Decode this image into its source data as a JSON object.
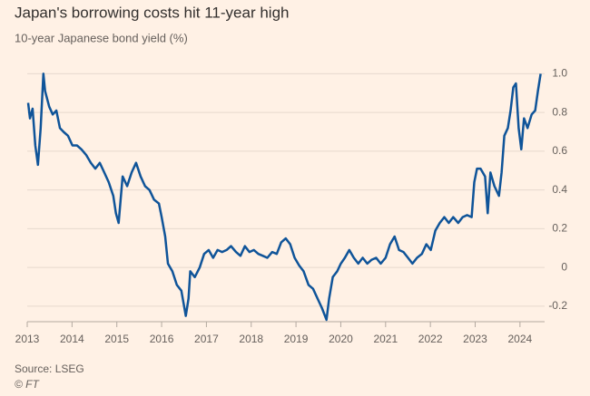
{
  "chart_data": {
    "type": "line",
    "title": "Japan's borrowing costs hit 11-year high",
    "subtitle": "10-year Japanese bond yield (%)",
    "source": "Source: LSEG",
    "credit": "© FT",
    "xlim": [
      2013,
      2024.55
    ],
    "xticks": [
      2013,
      2014,
      2015,
      2016,
      2017,
      2018,
      2019,
      2020,
      2021,
      2022,
      2023,
      2024
    ],
    "ylim": [
      -0.28,
      1.03
    ],
    "yticks": [
      {
        "value": 1,
        "label": "1.0"
      },
      0.8,
      0.6,
      0.4,
      0.2,
      0,
      -0.2
    ],
    "grid": true,
    "series": [
      {
        "name": "10-year Japanese bond yield",
        "color": "#0f5499",
        "x": [
          2013.02,
          2013.06,
          2013.12,
          2013.18,
          2013.24,
          2013.3,
          2013.36,
          2013.4,
          2013.49,
          2013.57,
          2013.65,
          2013.73,
          2013.81,
          2013.91,
          2014.01,
          2014.11,
          2014.21,
          2014.32,
          2014.42,
          2014.52,
          2014.62,
          2014.72,
          2014.82,
          2014.92,
          2014.98,
          2015.04,
          2015.13,
          2015.23,
          2015.33,
          2015.43,
          2015.53,
          2015.63,
          2015.73,
          2015.83,
          2015.94,
          2016.0,
          2016.08,
          2016.14,
          2016.24,
          2016.34,
          2016.44,
          2016.54,
          2016.6,
          2016.64,
          2016.74,
          2016.85,
          2016.95,
          2017.05,
          2017.15,
          2017.25,
          2017.35,
          2017.45,
          2017.55,
          2017.66,
          2017.76,
          2017.86,
          2017.96,
          2018.06,
          2018.16,
          2018.26,
          2018.36,
          2018.47,
          2018.57,
          2018.67,
          2018.77,
          2018.87,
          2018.97,
          2019.07,
          2019.17,
          2019.28,
          2019.38,
          2019.48,
          2019.58,
          2019.68,
          2019.74,
          2019.82,
          2019.92,
          2020.0,
          2020.09,
          2020.19,
          2020.29,
          2020.39,
          2020.49,
          2020.59,
          2020.69,
          2020.79,
          2020.89,
          2021.0,
          2021.1,
          2021.2,
          2021.3,
          2021.4,
          2021.5,
          2021.6,
          2021.7,
          2021.81,
          2021.91,
          2022.01,
          2022.11,
          2022.21,
          2022.31,
          2022.41,
          2022.51,
          2022.62,
          2022.72,
          2022.82,
          2022.92,
          2022.98,
          2023.04,
          2023.12,
          2023.22,
          2023.28,
          2023.34,
          2023.43,
          2023.53,
          2023.59,
          2023.65,
          2023.73,
          2023.79,
          2023.85,
          2023.91,
          2023.97,
          2024.03,
          2024.09,
          2024.17,
          2024.26,
          2024.34,
          2024.4,
          2024.46
        ],
        "values": [
          0.85,
          0.77,
          0.82,
          0.63,
          0.53,
          0.72,
          1.0,
          0.91,
          0.83,
          0.79,
          0.81,
          0.72,
          0.7,
          0.68,
          0.63,
          0.63,
          0.61,
          0.58,
          0.54,
          0.51,
          0.54,
          0.49,
          0.44,
          0.37,
          0.28,
          0.23,
          0.47,
          0.42,
          0.49,
          0.54,
          0.47,
          0.42,
          0.4,
          0.35,
          0.33,
          0.26,
          0.16,
          0.02,
          -0.02,
          -0.09,
          -0.12,
          -0.25,
          -0.16,
          -0.02,
          -0.05,
          0,
          0.07,
          0.09,
          0.05,
          0.09,
          0.08,
          0.09,
          0.11,
          0.08,
          0.06,
          0.11,
          0.08,
          0.09,
          0.07,
          0.06,
          0.05,
          0.08,
          0.07,
          0.13,
          0.15,
          0.12,
          0.05,
          0.01,
          -0.02,
          -0.09,
          -0.11,
          -0.16,
          -0.21,
          -0.27,
          -0.16,
          -0.05,
          -0.02,
          0.02,
          0.05,
          0.09,
          0.05,
          0.02,
          0.05,
          0.02,
          0.04,
          0.05,
          0.02,
          0.05,
          0.12,
          0.16,
          0.09,
          0.08,
          0.05,
          0.02,
          0.05,
          0.07,
          0.12,
          0.09,
          0.19,
          0.23,
          0.26,
          0.23,
          0.26,
          0.23,
          0.26,
          0.27,
          0.26,
          0.44,
          0.51,
          0.51,
          0.47,
          0.28,
          0.49,
          0.42,
          0.37,
          0.49,
          0.68,
          0.72,
          0.81,
          0.93,
          0.95,
          0.72,
          0.61,
          0.77,
          0.72,
          0.79,
          0.81,
          0.91,
          1.0
        ]
      }
    ]
  }
}
